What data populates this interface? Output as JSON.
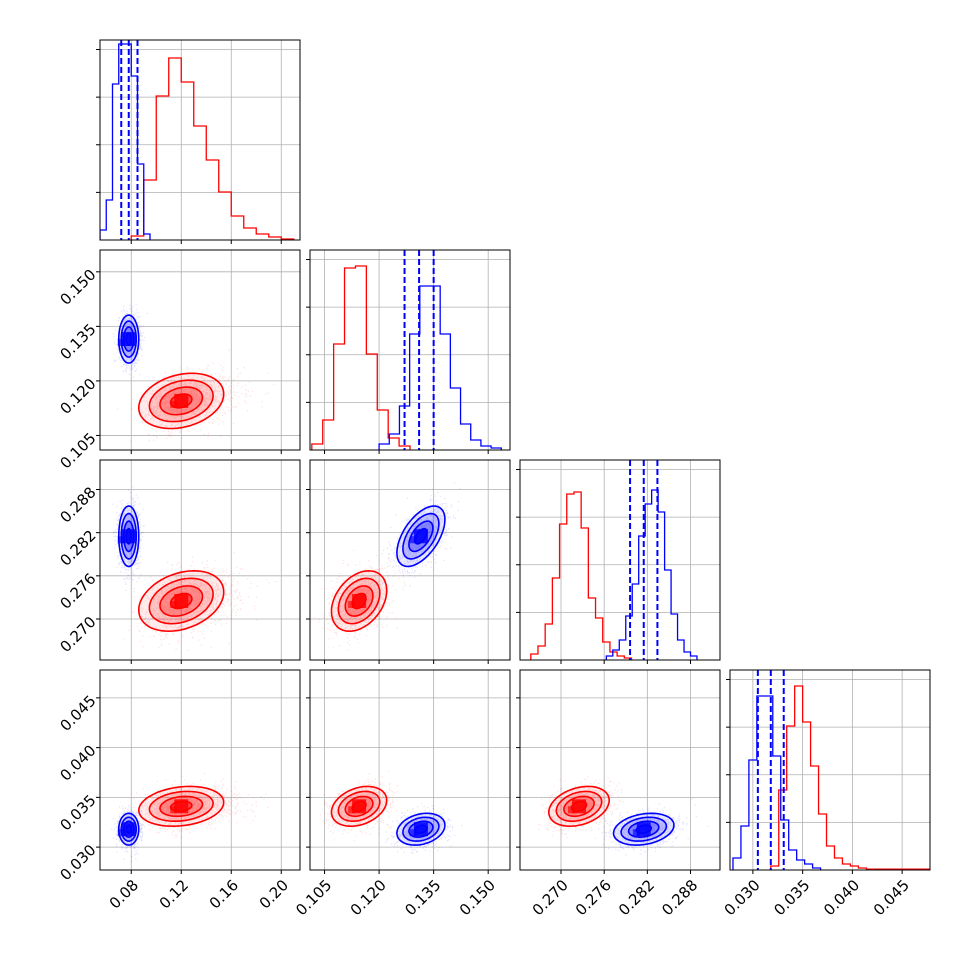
{
  "chart_data": {
    "type": "corner",
    "grid": true,
    "parameters": [
      {
        "range": [
          0.055,
          0.215
        ],
        "ticks": [
          0.08,
          0.12,
          0.16,
          0.2
        ],
        "tick_labels": [
          "0.08",
          "0.12",
          "0.16",
          "0.20"
        ]
      },
      {
        "range": [
          0.101,
          0.156
        ],
        "ticks": [
          0.105,
          0.12,
          0.135,
          0.15
        ],
        "tick_labels": [
          "0.105",
          "0.120",
          "0.135",
          "0.150"
        ]
      },
      {
        "range": [
          0.2643,
          0.2921
        ],
        "ticks": [
          0.27,
          0.276,
          0.282,
          0.288
        ],
        "tick_labels": [
          "0.270",
          "0.276",
          "0.282",
          "0.288"
        ]
      },
      {
        "range": [
          0.0277,
          0.0478
        ],
        "ticks": [
          0.03,
          0.035,
          0.04,
          0.045
        ],
        "tick_labels": [
          "0.030",
          "0.035",
          "0.040",
          "0.045"
        ]
      }
    ],
    "series": [
      {
        "color": "#ff0000",
        "means": [
          0.12,
          0.1145,
          0.2725,
          0.0341
        ],
        "sigmas": [
          0.017,
          0.0038,
          0.0021,
          0.001
        ],
        "correlations": [
          [
            0,
            1,
            0.25
          ],
          [
            0,
            2,
            0.3
          ],
          [
            0,
            3,
            0.2
          ],
          [
            1,
            2,
            0.35
          ],
          [
            1,
            3,
            0.3
          ],
          [
            2,
            3,
            0.3
          ]
        ],
        "histograms": [
          {
            "edges": [
              0.08,
              0.09,
              0.1,
              0.11,
              0.12,
              0.13,
              0.14,
              0.15,
              0.16,
              0.17,
              0.18,
              0.19,
              0.2,
              0.21
            ],
            "counts": [
              0.02,
              0.3,
              0.72,
              0.91,
              0.79,
              0.57,
              0.4,
              0.24,
              0.12,
              0.06,
              0.03,
              0.015,
              0.005
            ]
          },
          {
            "edges": [
              0.1015,
              0.1045,
              0.1075,
              0.1105,
              0.1135,
              0.1165,
              0.1195,
              0.1225,
              0.1255,
              0.1285
            ],
            "counts": [
              0.03,
              0.15,
              0.53,
              0.91,
              0.92,
              0.48,
              0.2,
              0.06,
              0.02
            ]
          },
          {
            "edges": [
              0.2658,
              0.2668,
              0.2678,
              0.2688,
              0.2698,
              0.2708,
              0.2718,
              0.2728,
              0.2738,
              0.2748,
              0.2758,
              0.2768,
              0.2778,
              0.2788,
              0.2798
            ],
            "counts": [
              0.03,
              0.07,
              0.18,
              0.41,
              0.68,
              0.83,
              0.84,
              0.66,
              0.31,
              0.21,
              0.09,
              0.04,
              0.02,
              0.01
            ]
          },
          {
            "edges": [
              0.0318,
              0.0326,
              0.0334,
              0.0342,
              0.035,
              0.0358,
              0.0366,
              0.0374,
              0.0382,
              0.039,
              0.0398,
              0.0406,
              0.0414,
              0.0478
            ],
            "counts": [
              0.02,
              0.4,
              0.72,
              0.92,
              0.74,
              0.52,
              0.28,
              0.12,
              0.06,
              0.03,
              0.02,
              0.01,
              0.004
            ]
          }
        ]
      },
      {
        "color": "#0000ff",
        "means": [
          0.078,
          0.1315,
          0.2815,
          0.0318
        ],
        "sigmas": [
          0.004,
          0.0033,
          0.0021,
          0.0008
        ],
        "correlations": [
          [
            0,
            1,
            0.0
          ],
          [
            0,
            2,
            0.0
          ],
          [
            0,
            3,
            0.0
          ],
          [
            1,
            2,
            0.55
          ],
          [
            1,
            3,
            0.25
          ],
          [
            2,
            3,
            0.25
          ]
        ],
        "quantiles": [
          [
            0.072,
            0.078,
            0.085
          ],
          [
            0.127,
            0.131,
            0.135
          ],
          [
            0.2796,
            0.2815,
            0.2834
          ],
          [
            0.0305,
            0.0318,
            0.0331
          ]
        ],
        "histograms": [
          {
            "edges": [
              0.055,
              0.06,
              0.065,
              0.07,
              0.075,
              0.08,
              0.085,
              0.09,
              0.095
            ],
            "counts": [
              0.05,
              0.2,
              0.78,
              0.98,
              0.98,
              0.82,
              0.38,
              0.03
            ]
          },
          {
            "edges": [
              0.12,
              0.1228,
              0.1256,
              0.1284,
              0.1312,
              0.134,
              0.1368,
              0.1396,
              0.1424,
              0.1452,
              0.148,
              0.1508,
              0.1536
            ],
            "counts": [
              0.03,
              0.08,
              0.22,
              0.58,
              0.82,
              0.82,
              0.58,
              0.31,
              0.13,
              0.05,
              0.02,
              0.01
            ]
          },
          {
            "edges": [
              0.2763,
              0.2772,
              0.2781,
              0.279,
              0.2799,
              0.2808,
              0.2817,
              0.2826,
              0.2835,
              0.2844,
              0.2853,
              0.2862,
              0.2871,
              0.288,
              0.2889
            ],
            "counts": [
              0.02,
              0.05,
              0.1,
              0.22,
              0.38,
              0.62,
              0.78,
              0.85,
              0.74,
              0.45,
              0.23,
              0.1,
              0.04,
              0.02
            ]
          },
          {
            "edges": [
              0.028,
              0.0288,
              0.0296,
              0.0304,
              0.0312,
              0.032,
              0.0328,
              0.0336,
              0.0344,
              0.0352,
              0.036,
              0.0368
            ],
            "counts": [
              0.06,
              0.22,
              0.55,
              0.87,
              0.87,
              0.57,
              0.25,
              0.1,
              0.05,
              0.03,
              0.01
            ]
          }
        ]
      }
    ]
  }
}
